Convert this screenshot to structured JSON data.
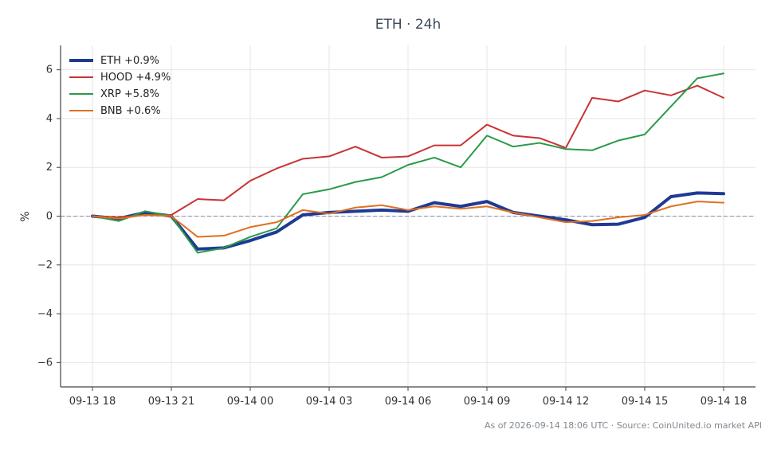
{
  "chart_data": {
    "type": "line",
    "title": "ETH · 24h",
    "xlabel": "",
    "ylabel": "%",
    "ylim": [
      -7,
      7
    ],
    "yticks": [
      -6,
      -4,
      -2,
      0,
      2,
      4,
      6
    ],
    "ytick_labels": [
      "−6",
      "−4",
      "−2",
      "0",
      "2",
      "4",
      "6"
    ],
    "x_tick_labels": [
      "09-13 18",
      "09-13 21",
      "09-14 00",
      "09-14 03",
      "09-14 06",
      "09-14 09",
      "09-14 12",
      "09-14 15",
      "09-14 18"
    ],
    "x_tick_hours": [
      0,
      3,
      6,
      9,
      12,
      15,
      18,
      21,
      24
    ],
    "x_hours": [
      0,
      1,
      2,
      3,
      4,
      5,
      6,
      7,
      8,
      9,
      10,
      11,
      12,
      13,
      14,
      15,
      16,
      17,
      18,
      19,
      20,
      21,
      22,
      23,
      24
    ],
    "grid": true,
    "zero_line": true,
    "legend_position": "top-left",
    "series": [
      {
        "name": "ETH +0.9%",
        "color": "#1f3a93",
        "width": 4,
        "values": [
          0.0,
          -0.1,
          0.15,
          0.0,
          -1.35,
          -1.3,
          -1.0,
          -0.65,
          0.05,
          0.15,
          0.2,
          0.25,
          0.2,
          0.55,
          0.4,
          0.6,
          0.15,
          0.0,
          -0.15,
          -0.35,
          -0.33,
          -0.05,
          0.8,
          0.95,
          0.92
        ]
      },
      {
        "name": "HOOD +4.9%",
        "color": "#c83434",
        "width": 2,
        "values": [
          0.0,
          -0.05,
          0.05,
          0.05,
          0.7,
          0.65,
          1.45,
          1.95,
          2.35,
          2.45,
          2.85,
          2.4,
          2.45,
          2.9,
          2.9,
          3.75,
          3.3,
          3.2,
          2.8,
          4.85,
          4.7,
          5.15,
          4.95,
          5.35,
          4.85
        ]
      },
      {
        "name": "XRP +5.8%",
        "color": "#2a9a4a",
        "width": 2,
        "values": [
          0.0,
          -0.2,
          0.2,
          0.0,
          -1.5,
          -1.3,
          -0.85,
          -0.5,
          0.9,
          1.1,
          1.4,
          1.6,
          2.1,
          2.4,
          2.0,
          3.3,
          2.85,
          3.0,
          2.75,
          2.7,
          3.1,
          3.35,
          4.5,
          5.65,
          5.85
        ]
      },
      {
        "name": "BNB +0.6%",
        "color": "#e07020",
        "width": 2,
        "values": [
          0.0,
          -0.1,
          0.05,
          0.0,
          -0.85,
          -0.8,
          -0.45,
          -0.25,
          0.25,
          0.1,
          0.35,
          0.45,
          0.25,
          0.4,
          0.3,
          0.4,
          0.15,
          -0.05,
          -0.25,
          -0.2,
          -0.05,
          0.05,
          0.4,
          0.6,
          0.55
        ]
      }
    ],
    "footer": "As of 2026-09-14 18:06 UTC · Source: CoinUnited.io market API"
  }
}
